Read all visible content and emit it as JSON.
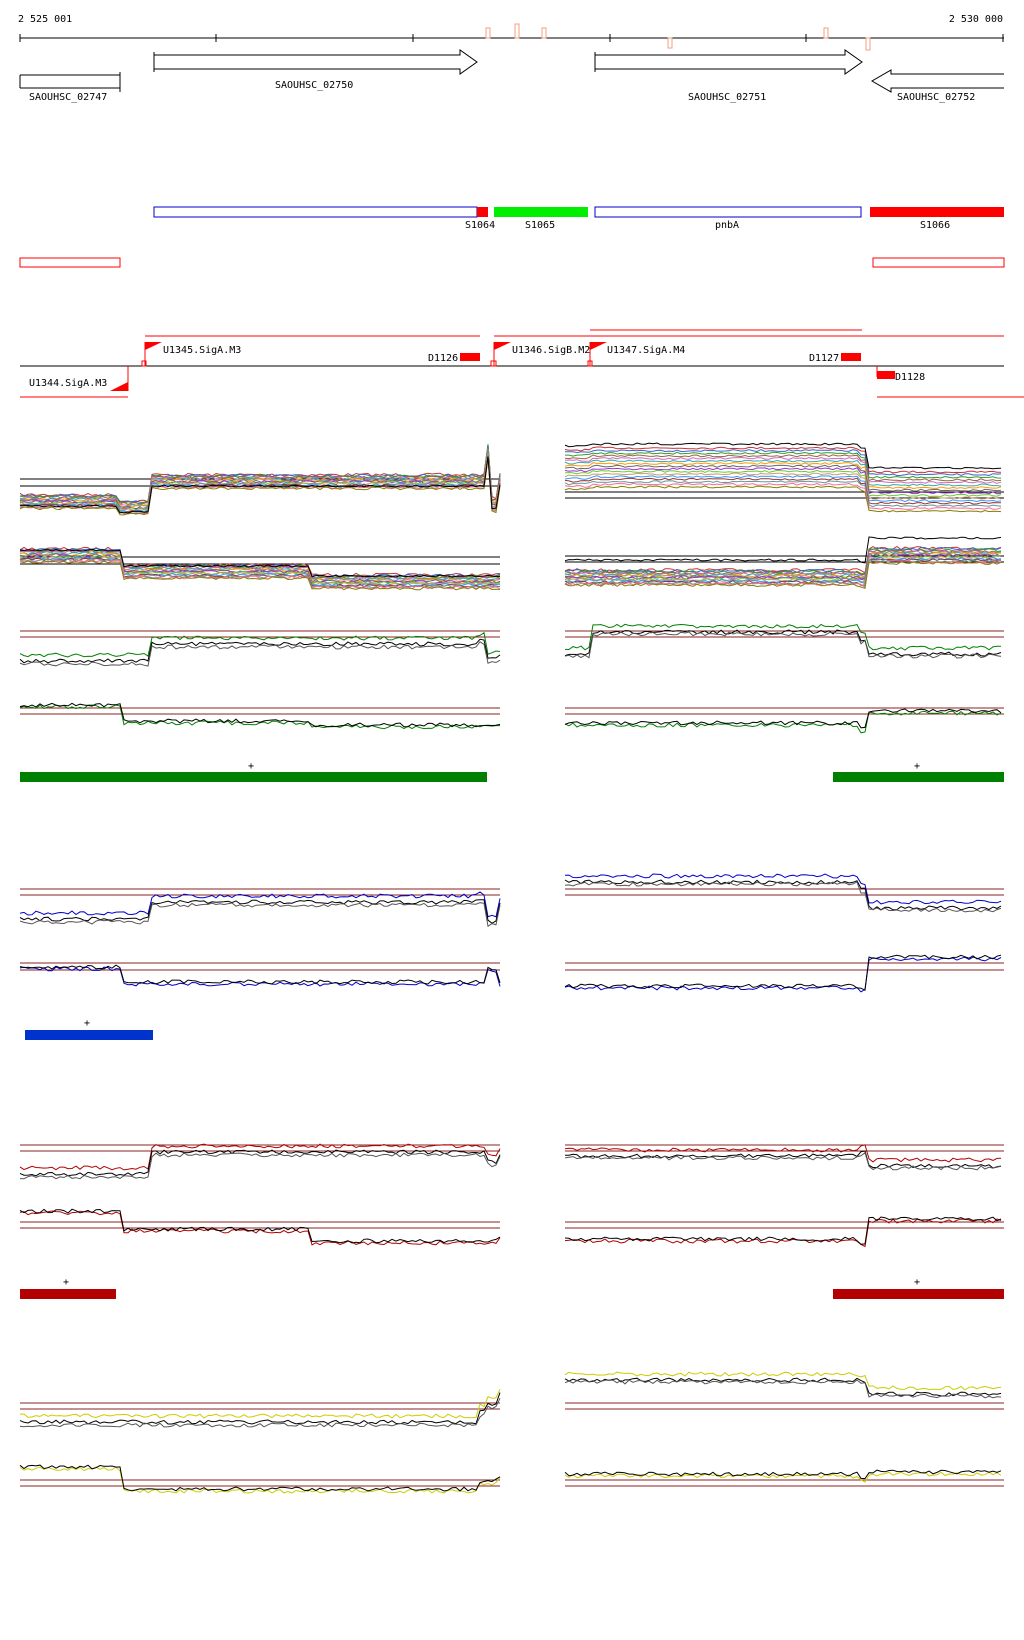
{
  "coordinates": {
    "start": "2 525 001",
    "end": "2 530 000"
  },
  "genes": [
    {
      "id": "SAOUHSC_02747"
    },
    {
      "id": "SAOUHSC_02750"
    },
    {
      "id": "SAOUHSC_02751"
    },
    {
      "id": "SAOUHSC_02752"
    }
  ],
  "segments": [
    {
      "id": "S1064"
    },
    {
      "id": "S1065"
    },
    {
      "id": "pnbA"
    },
    {
      "id": "S1066"
    }
  ],
  "promoters": [
    {
      "id": "U1344.SigA.M3"
    },
    {
      "id": "U1345.SigA.M3"
    },
    {
      "id": "U1346.SigB.M2"
    },
    {
      "id": "U1347.SigA.M4"
    }
  ],
  "terminators": [
    {
      "id": "D1126"
    },
    {
      "id": "D1127"
    },
    {
      "id": "D1128"
    }
  ],
  "conditions": [
    {
      "color": "#008000",
      "marker": "+"
    },
    {
      "color": "#0000cc",
      "marker": "+"
    },
    {
      "color": "#b30000",
      "marker": "+"
    },
    {
      "color": "#cccc00"
    }
  ],
  "colors": {
    "promoter": "#ff0000",
    "terminator": "#ff0000",
    "segment_outline_blue": "#0000cc",
    "segment_green": "#00ee00",
    "segment_red": "#ff0000",
    "threshold_line": "#8b2020"
  }
}
